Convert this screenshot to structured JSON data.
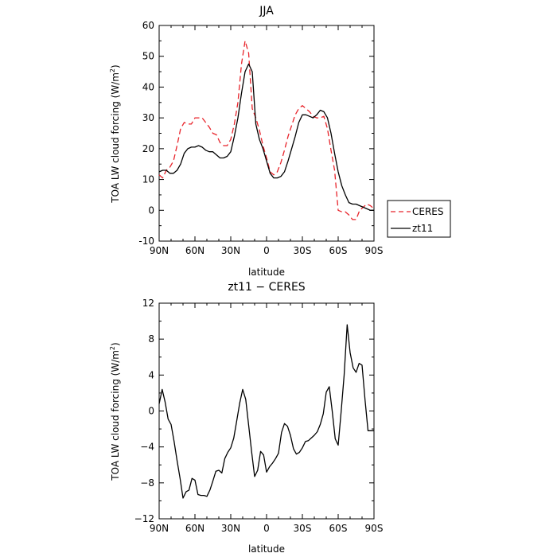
{
  "chart_data": [
    {
      "type": "line",
      "title": "JJA",
      "xlabel": "latitude",
      "ylabel": "TOA LW cloud forcing (W/m²)",
      "ylabel_parts": [
        "TOA LW cloud forcing (W/m",
        "2",
        ")"
      ],
      "xlim": [
        90,
        -90
      ],
      "ylim": [
        -10,
        60
      ],
      "x_ticks": [
        90,
        60,
        30,
        0,
        -30,
        -60,
        -90
      ],
      "x_tick_labels": [
        "90N",
        "60N",
        "30N",
        "0",
        "30S",
        "60S",
        "90S"
      ],
      "y_ticks": [
        -10,
        0,
        10,
        20,
        30,
        40,
        50,
        60
      ],
      "y_tick_labels": [
        "-10",
        "0",
        "10",
        "20",
        "30",
        "40",
        "50",
        "60"
      ],
      "legend": "outside-right",
      "series": [
        {
          "name": "CERES",
          "color": "#e8232a",
          "dash": "dashed",
          "x": [
            90,
            87,
            84,
            81,
            78,
            75,
            72,
            69,
            66,
            63,
            60,
            57,
            54,
            51,
            48,
            45,
            42,
            39,
            36,
            33,
            30,
            27,
            24,
            21,
            18,
            15,
            12,
            9,
            6,
            3,
            0,
            -3,
            -6,
            -9,
            -12,
            -15,
            -18,
            -21,
            -24,
            -27,
            -30,
            -33,
            -36,
            -39,
            -42,
            -45,
            -48,
            -51,
            -54,
            -57,
            -60,
            -63,
            -66,
            -69,
            -72,
            -75,
            -78,
            -81,
            -84,
            -87,
            -90
          ],
          "y": [
            11.5,
            10.5,
            13,
            14,
            16,
            21,
            26.5,
            28.5,
            28,
            28,
            30,
            30,
            30,
            28.5,
            27,
            25,
            24.5,
            22,
            21,
            21,
            23,
            28,
            35,
            47.5,
            55,
            51,
            33,
            30,
            26,
            21,
            17,
            12.5,
            11.5,
            12.5,
            15.5,
            19.5,
            24,
            27.5,
            31,
            33,
            34,
            33,
            32,
            30.5,
            30,
            30,
            30.5,
            26.5,
            19.5,
            13,
            0,
            -0.5,
            -0.5,
            -1.5,
            -3,
            -3,
            0,
            1,
            2,
            1.5,
            0.5
          ]
        },
        {
          "name": "zt11",
          "color": "#000000",
          "dash": "solid",
          "x": [
            90,
            87,
            84,
            81,
            78,
            75,
            72,
            69,
            66,
            63,
            60,
            57,
            54,
            51,
            48,
            45,
            42,
            39,
            36,
            33,
            30,
            27,
            24,
            21,
            18,
            15,
            12,
            9,
            6,
            3,
            0,
            -3,
            -6,
            -9,
            -12,
            -15,
            -18,
            -21,
            -24,
            -27,
            -30,
            -33,
            -36,
            -39,
            -42,
            -45,
            -48,
            -51,
            -54,
            -57,
            -60,
            -63,
            -66,
            -69,
            -72,
            -75,
            -78,
            -81,
            -84,
            -87,
            -90
          ],
          "y": [
            12.5,
            13,
            13,
            12,
            12,
            13,
            15,
            18.5,
            20,
            20.5,
            20.5,
            21,
            20.5,
            19.5,
            19,
            19,
            18,
            17,
            17,
            17.5,
            19,
            24,
            30,
            38,
            45,
            47.5,
            45,
            28,
            23,
            20,
            16,
            12,
            10.5,
            10.5,
            11,
            12.5,
            16,
            20,
            24,
            28.5,
            31,
            31,
            30.5,
            30,
            31,
            32.5,
            32,
            30,
            25,
            18.5,
            12.5,
            8,
            5,
            2.5,
            2,
            2,
            1.5,
            1,
            0.5,
            0,
            0
          ]
        }
      ]
    },
    {
      "type": "line",
      "title": "zt11 − CERES",
      "xlabel": "latitude",
      "ylabel": "TOA LW cloud forcing (W/m²)",
      "ylabel_parts": [
        "TOA LW cloud forcing (W/m",
        "2",
        ")"
      ],
      "xlim": [
        90,
        -90
      ],
      "ylim": [
        -12,
        12
      ],
      "x_ticks": [
        90,
        60,
        30,
        0,
        -30,
        -60,
        -90
      ],
      "x_tick_labels": [
        "90N",
        "60N",
        "30N",
        "0",
        "30S",
        "60S",
        "90S"
      ],
      "y_ticks": [
        -12,
        -8,
        -4,
        0,
        4,
        8,
        12
      ],
      "y_tick_labels": [
        "−12",
        "−8",
        "−4",
        "0",
        "4",
        "8",
        "12"
      ],
      "series": [
        {
          "color": "#000000",
          "dash": "solid",
          "x": [
            90,
            87.5,
            85,
            82.5,
            80,
            77.5,
            75,
            72.5,
            70,
            67.5,
            65,
            62.5,
            60,
            57.5,
            55,
            52.5,
            50,
            47.5,
            45,
            42.5,
            40,
            37.5,
            35,
            32.5,
            30,
            27.5,
            25,
            22.5,
            20,
            17.5,
            15,
            12.5,
            10,
            7.5,
            5,
            2.5,
            0,
            -2.5,
            -5,
            -7.5,
            -10,
            -12.5,
            -15,
            -17.5,
            -20,
            -22.5,
            -25,
            -27.5,
            -30,
            -32.5,
            -35,
            -37.5,
            -40,
            -42.5,
            -45,
            -47.5,
            -50,
            -52.5,
            -55,
            -57.5,
            -60,
            -62.5,
            -65,
            -67.5,
            -70,
            -72.5,
            -75,
            -77.5,
            -80,
            -82.5,
            -85,
            -87.5,
            -90
          ],
          "y": [
            0.8,
            2.4,
            1.0,
            -0.9,
            -1.5,
            -3.4,
            -5.5,
            -7.5,
            -9.7,
            -9.0,
            -8.8,
            -7.5,
            -7.7,
            -9.3,
            -9.4,
            -9.4,
            -9.5,
            -8.8,
            -7.8,
            -6.7,
            -6.6,
            -6.9,
            -5.3,
            -4.6,
            -4.1,
            -3.0,
            -1.1,
            0.9,
            2.4,
            1.3,
            -1.6,
            -4.6,
            -7.3,
            -6.6,
            -4.5,
            -4.9,
            -6.8,
            -6.2,
            -5.8,
            -5.3,
            -4.7,
            -2.4,
            -1.4,
            -1.7,
            -2.7,
            -4.2,
            -4.8,
            -4.6,
            -4.1,
            -3.4,
            -3.3,
            -3.0,
            -2.7,
            -2.3,
            -1.5,
            -0.3,
            2.1,
            2.7,
            0.0,
            -3.1,
            -3.8,
            0.0,
            4.0,
            9.6,
            6.5,
            4.8,
            4.3,
            5.3,
            5.1,
            1.2,
            -2.2,
            -2.2,
            -2.2
          ]
        }
      ]
    }
  ]
}
